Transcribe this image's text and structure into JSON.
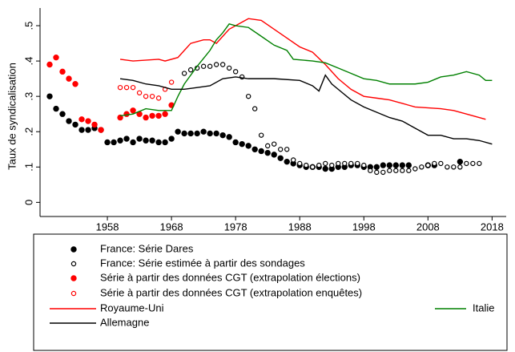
{
  "chart_data": {
    "type": "line",
    "y_label": "Taux de syndicalisation",
    "xlim": [
      1947.5,
      2020.2
    ],
    "ylim": [
      -0.04,
      0.55
    ],
    "xticks": [
      1958,
      1968,
      1978,
      1988,
      1998,
      2008,
      2018
    ],
    "yticks": [
      0,
      {
        "value": 0.1,
        "label": ".1"
      },
      {
        "value": 0.2,
        "label": ".2"
      },
      {
        "value": 0.3,
        "label": ".3"
      },
      {
        "value": 0.4,
        "label": ".4"
      },
      {
        "value": 0.5,
        "label": ".5"
      }
    ],
    "series": [
      {
        "name": "France: Série Dares",
        "color": "#000000",
        "marker": "filled",
        "x": [
          1949,
          1950,
          1951,
          1952,
          1953,
          1954,
          1955,
          1956,
          1957,
          1958,
          1959,
          1960,
          1961,
          1962,
          1963,
          1964,
          1965,
          1966,
          1967,
          1968,
          1969,
          1970,
          1971,
          1972,
          1973,
          1974,
          1975,
          1976,
          1977,
          1978,
          1979,
          1980,
          1981,
          1982,
          1983,
          1984,
          1985,
          1986,
          1987,
          1988,
          1989,
          1990,
          1991,
          1992,
          1993,
          1994,
          1995,
          1996,
          1997,
          1998,
          1999,
          2000,
          2001,
          2002,
          2003,
          2004,
          2005,
          2008,
          2009,
          2013
        ],
        "values": [
          0.3,
          0.265,
          0.25,
          0.23,
          0.22,
          0.205,
          0.205,
          0.21,
          0.205,
          0.17,
          0.17,
          0.175,
          0.18,
          0.17,
          0.18,
          0.175,
          0.175,
          0.17,
          0.17,
          0.18,
          0.2,
          0.195,
          0.195,
          0.195,
          0.2,
          0.195,
          0.195,
          0.19,
          0.185,
          0.17,
          0.165,
          0.16,
          0.15,
          0.145,
          0.14,
          0.135,
          0.125,
          0.115,
          0.11,
          0.105,
          0.1,
          0.1,
          0.1,
          0.095,
          0.095,
          0.1,
          0.1,
          0.105,
          0.105,
          0.1,
          0.1,
          0.1,
          0.105,
          0.105,
          0.105,
          0.105,
          0.105,
          0.105,
          0.105,
          0.115
        ]
      },
      {
        "name": "France: Série estimée à partir des sondages",
        "color": "#000000",
        "marker": "hollow",
        "x": [
          1970,
          1971,
          1972,
          1973,
          1974,
          1975,
          1976,
          1977,
          1978,
          1979,
          1980,
          1981,
          1982,
          1983,
          1984,
          1985,
          1986,
          1987,
          1988,
          1989,
          1990,
          1991,
          1992,
          1993,
          1994,
          1995,
          1996,
          1997,
          1998,
          1999,
          2000,
          2001,
          2002,
          2003,
          2004,
          2005,
          2006,
          2007,
          2008,
          2009,
          2010,
          2011,
          2012,
          2013,
          2014,
          2015,
          2016
        ],
        "values": [
          0.365,
          0.375,
          0.38,
          0.385,
          0.385,
          0.39,
          0.39,
          0.38,
          0.37,
          0.355,
          0.3,
          0.265,
          0.19,
          0.16,
          0.165,
          0.15,
          0.15,
          0.12,
          0.11,
          0.105,
          0.1,
          0.105,
          0.11,
          0.105,
          0.11,
          0.11,
          0.11,
          0.11,
          0.105,
          0.09,
          0.085,
          0.085,
          0.09,
          0.09,
          0.09,
          0.09,
          0.095,
          0.1,
          0.105,
          0.11,
          0.11,
          0.1,
          0.1,
          0.1,
          0.11,
          0.11,
          0.11
        ]
      },
      {
        "name": "Série à partir des données CGT (extrapolation élections)",
        "color": "#ff0000",
        "marker": "filled",
        "x": [
          1949,
          1950,
          1951,
          1952,
          1953,
          1954,
          1955,
          1956,
          1957,
          1960,
          1961,
          1962,
          1963,
          1964,
          1965,
          1966,
          1967,
          1968
        ],
        "values": [
          0.39,
          0.41,
          0.37,
          0.35,
          0.335,
          0.235,
          0.23,
          0.22,
          0.205,
          0.24,
          0.25,
          0.26,
          0.25,
          0.24,
          0.245,
          0.245,
          0.25,
          0.275
        ]
      },
      {
        "name": "Série à partir des données CGT (extrapolation enquêtes)",
        "color": "#ff0000",
        "marker": "hollow",
        "x": [
          1960,
          1961,
          1962,
          1963,
          1964,
          1965,
          1966,
          1967,
          1968
        ],
        "values": [
          0.325,
          0.325,
          0.325,
          0.31,
          0.3,
          0.3,
          0.295,
          0.32,
          0.34
        ]
      },
      {
        "name": "Royaume-Uni",
        "color": "#ff0000",
        "marker": "none",
        "x": [
          1960,
          1962,
          1966,
          1967,
          1969,
          1970,
          1971,
          1973,
          1974,
          1975,
          1976,
          1977,
          1979,
          1980,
          1982,
          1984,
          1986,
          1988,
          1990,
          1992,
          1994,
          1996,
          1998,
          2000,
          2002,
          2004,
          2006,
          2010,
          2012,
          2014,
          2017
        ],
        "values": [
          0.405,
          0.4,
          0.405,
          0.4,
          0.41,
          0.43,
          0.45,
          0.46,
          0.46,
          0.45,
          0.47,
          0.49,
          0.51,
          0.52,
          0.515,
          0.49,
          0.465,
          0.44,
          0.425,
          0.39,
          0.35,
          0.32,
          0.3,
          0.295,
          0.29,
          0.28,
          0.27,
          0.265,
          0.26,
          0.25,
          0.235
        ]
      },
      {
        "name": "Italie",
        "color": "#008000",
        "marker": "none",
        "x": [
          1960,
          1962,
          1964,
          1966,
          1968,
          1969,
          1970,
          1972,
          1974,
          1975,
          1976,
          1977,
          1978,
          1980,
          1982,
          1984,
          1986,
          1987,
          1990,
          1992,
          1994,
          1996,
          1998,
          2000,
          2002,
          2004,
          2006,
          2008,
          2010,
          2012,
          2014,
          2016,
          2017,
          2018
        ],
        "values": [
          0.245,
          0.25,
          0.265,
          0.26,
          0.26,
          0.3,
          0.335,
          0.385,
          0.43,
          0.46,
          0.48,
          0.505,
          0.5,
          0.495,
          0.47,
          0.445,
          0.43,
          0.405,
          0.4,
          0.395,
          0.38,
          0.365,
          0.35,
          0.345,
          0.335,
          0.335,
          0.335,
          0.34,
          0.355,
          0.36,
          0.37,
          0.36,
          0.345,
          0.345
        ]
      },
      {
        "name": "Allemagne",
        "color": "#000000",
        "marker": "none",
        "x": [
          1960,
          1962,
          1964,
          1966,
          1968,
          1970,
          1972,
          1974,
          1976,
          1978,
          1980,
          1984,
          1988,
          1990,
          1991,
          1992,
          1993,
          1994,
          1996,
          1998,
          2000,
          2002,
          2004,
          2006,
          2008,
          2010,
          2012,
          2014,
          2016,
          2018
        ],
        "values": [
          0.35,
          0.345,
          0.335,
          0.33,
          0.32,
          0.32,
          0.325,
          0.33,
          0.35,
          0.355,
          0.35,
          0.35,
          0.345,
          0.33,
          0.315,
          0.36,
          0.335,
          0.32,
          0.29,
          0.27,
          0.255,
          0.24,
          0.23,
          0.21,
          0.19,
          0.19,
          0.18,
          0.18,
          0.175,
          0.165
        ]
      }
    ]
  }
}
